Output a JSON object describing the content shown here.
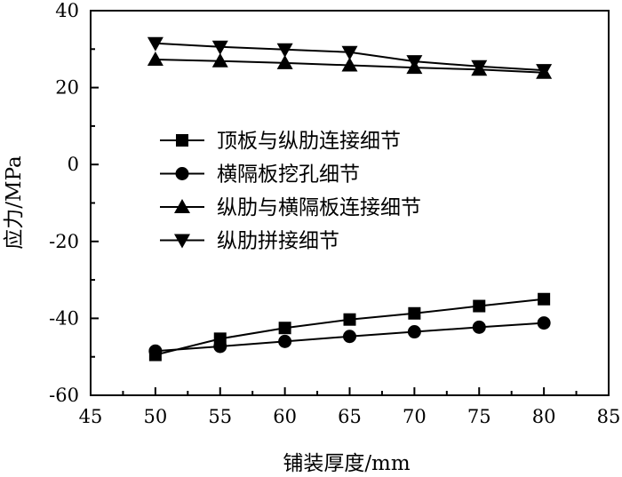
{
  "chart_data": {
    "type": "line",
    "title": "",
    "xlabel": "铺装厚度/mm",
    "ylabel": "应力/MPa",
    "xlim": [
      45,
      85
    ],
    "ylim": [
      -60,
      40
    ],
    "xticks": [
      45,
      50,
      55,
      60,
      65,
      70,
      75,
      80,
      85
    ],
    "yticks": [
      -60,
      -40,
      -20,
      0,
      20,
      40
    ],
    "x": [
      50,
      55,
      60,
      65,
      70,
      75,
      80
    ],
    "grid": false,
    "legend_position": "center-left",
    "series": [
      {
        "name": "顶板与纵肋连接细节",
        "marker": "square",
        "values": [
          -49.5,
          -45.3,
          -42.5,
          -40.3,
          -38.7,
          -36.8,
          -35.0
        ]
      },
      {
        "name": "横隔板挖孔细节",
        "marker": "circle",
        "values": [
          -48.5,
          -47.3,
          -46.0,
          -44.7,
          -43.5,
          -42.3,
          -41.2
        ]
      },
      {
        "name": "纵肋与横隔板连接细节",
        "marker": "triangle-up",
        "values": [
          27.3,
          26.9,
          26.4,
          25.8,
          25.2,
          24.7,
          23.9
        ]
      },
      {
        "name": "纵肋拼接细节",
        "marker": "triangle-down",
        "values": [
          31.5,
          30.6,
          29.9,
          29.2,
          26.8,
          25.5,
          24.5
        ]
      }
    ]
  }
}
